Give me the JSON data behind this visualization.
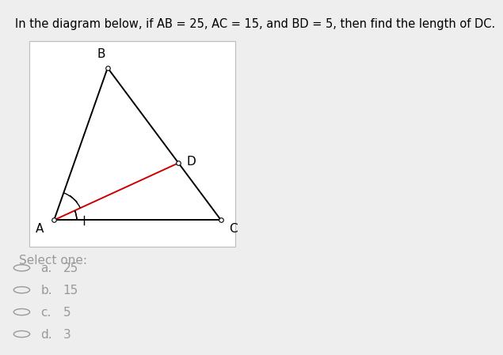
{
  "title": "In the diagram below, if AB = 25, AC = 15, and BD = 5, then find the length of DC.",
  "title_bg": "#ccff00",
  "title_fontsize": 10.5,
  "fig_bg": "#eeeeee",
  "diagram_bg": "#ffffff",
  "A": [
    0.12,
    0.13
  ],
  "B": [
    0.38,
    0.87
  ],
  "C": [
    0.93,
    0.13
  ],
  "line_color": "#000000",
  "red_line_color": "#cc0000",
  "select_one_text": "Select one:",
  "answer_labels": [
    "a.",
    "b.",
    "c.",
    "d."
  ],
  "answer_values": [
    "25",
    "15",
    "5",
    "3"
  ],
  "options_color": "#999999",
  "options_fontsize": 11
}
